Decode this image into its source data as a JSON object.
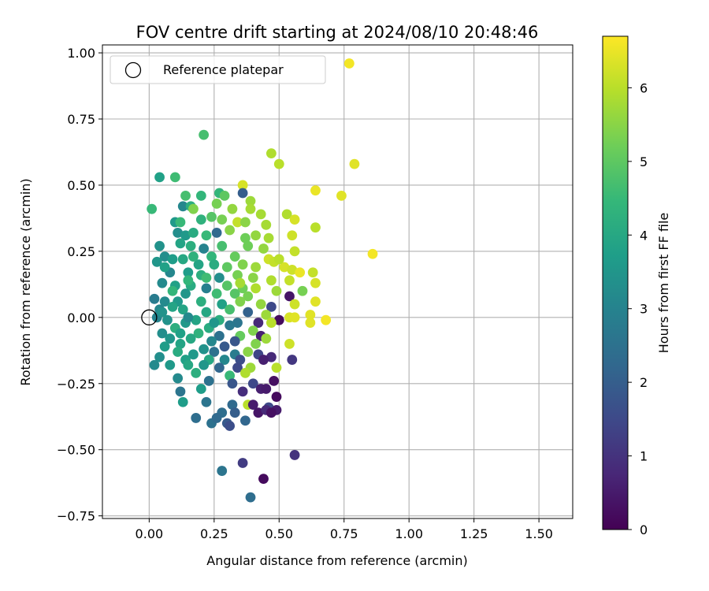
{
  "chart_data": {
    "type": "scatter",
    "title": "FOV centre drift starting at 2024/08/10 20:48:46",
    "xlabel": "Angular distance from reference (arcmin)",
    "ylabel": "Rotation from reference (arcmin)",
    "xlim": [
      -0.18,
      1.63
    ],
    "ylim": [
      -0.76,
      1.03
    ],
    "xticks": [
      0.0,
      0.25,
      0.5,
      0.75,
      1.0,
      1.25,
      1.5
    ],
    "xtick_labels": [
      "0.00",
      "0.25",
      "0.50",
      "0.75",
      "1.00",
      "1.25",
      "1.50"
    ],
    "yticks": [
      1.0,
      0.75,
      0.5,
      0.25,
      0.0,
      -0.25,
      -0.5,
      -0.75
    ],
    "ytick_labels": [
      "1.00",
      "0.75",
      "0.50",
      "0.25",
      "0.00",
      "−0.25",
      "−0.50",
      "−0.75"
    ],
    "grid": true,
    "legend": {
      "label": "Reference platepar",
      "location": "top-left",
      "marker": "open-circle"
    },
    "reference_point": {
      "x": 0.0,
      "y": 0.0
    },
    "colorbar": {
      "label": "Hours from first FF file",
      "colormap": "viridis",
      "range": [
        0,
        6.7
      ],
      "ticks": [
        0,
        1,
        2,
        3,
        4,
        5,
        6
      ],
      "tick_labels": [
        "0",
        "1",
        "2",
        "3",
        "4",
        "5",
        "6"
      ]
    },
    "points": [
      [
        0.77,
        0.96,
        6.6
      ],
      [
        0.21,
        0.69,
        4.7
      ],
      [
        0.47,
        0.62,
        5.9
      ],
      [
        0.5,
        0.58,
        6.0
      ],
      [
        0.79,
        0.58,
        6.4
      ],
      [
        0.04,
        0.53,
        3.8
      ],
      [
        0.1,
        0.53,
        4.6
      ],
      [
        0.36,
        0.5,
        6.3
      ],
      [
        0.64,
        0.48,
        6.5
      ],
      [
        0.74,
        0.46,
        6.4
      ],
      [
        0.27,
        0.47,
        4.4
      ],
      [
        0.29,
        0.46,
        5.0
      ],
      [
        0.36,
        0.47,
        2.0
      ],
      [
        0.14,
        0.46,
        4.7
      ],
      [
        0.2,
        0.46,
        4.4
      ],
      [
        0.39,
        0.44,
        5.7
      ],
      [
        0.26,
        0.43,
        5.3
      ],
      [
        0.01,
        0.41,
        4.5
      ],
      [
        0.13,
        0.42,
        3.1
      ],
      [
        0.16,
        0.42,
        4.2
      ],
      [
        0.17,
        0.41,
        5.4
      ],
      [
        0.39,
        0.41,
        5.8
      ],
      [
        0.32,
        0.41,
        5.6
      ],
      [
        0.43,
        0.39,
        5.8
      ],
      [
        0.53,
        0.39,
        5.9
      ],
      [
        0.56,
        0.37,
        6.3
      ],
      [
        0.1,
        0.36,
        3.6
      ],
      [
        0.2,
        0.37,
        4.3
      ],
      [
        0.28,
        0.37,
        5.3
      ],
      [
        0.34,
        0.36,
        6.1
      ],
      [
        0.37,
        0.36,
        5.5
      ],
      [
        0.45,
        0.35,
        5.8
      ],
      [
        0.64,
        0.34,
        6.0
      ],
      [
        0.26,
        0.32,
        2.3
      ],
      [
        0.11,
        0.32,
        3.3
      ],
      [
        0.14,
        0.31,
        3.6
      ],
      [
        0.17,
        0.32,
        4.1
      ],
      [
        0.22,
        0.31,
        4.5
      ],
      [
        0.37,
        0.3,
        5.2
      ],
      [
        0.41,
        0.31,
        5.6
      ],
      [
        0.46,
        0.3,
        5.8
      ],
      [
        0.55,
        0.31,
        6.2
      ],
      [
        0.04,
        0.27,
        3.4
      ],
      [
        0.12,
        0.28,
        3.9
      ],
      [
        0.16,
        0.27,
        4.2
      ],
      [
        0.21,
        0.26,
        3.0
      ],
      [
        0.28,
        0.27,
        4.7
      ],
      [
        0.38,
        0.27,
        5.2
      ],
      [
        0.56,
        0.25,
        6.1
      ],
      [
        0.86,
        0.24,
        6.6
      ],
      [
        0.06,
        0.23,
        3.3
      ],
      [
        0.09,
        0.22,
        3.7
      ],
      [
        0.13,
        0.22,
        4.0
      ],
      [
        0.24,
        0.23,
        4.4
      ],
      [
        0.33,
        0.23,
        5.1
      ],
      [
        0.46,
        0.22,
        6.2
      ],
      [
        0.48,
        0.21,
        6.1
      ],
      [
        0.03,
        0.21,
        3.5
      ],
      [
        0.19,
        0.2,
        3.9
      ],
      [
        0.25,
        0.2,
        4.1
      ],
      [
        0.3,
        0.19,
        5.0
      ],
      [
        0.36,
        0.2,
        5.4
      ],
      [
        0.41,
        0.19,
        5.7
      ],
      [
        0.52,
        0.19,
        6.3
      ],
      [
        0.55,
        0.18,
        6.2
      ],
      [
        0.58,
        0.17,
        6.5
      ],
      [
        0.63,
        0.17,
        6.1
      ],
      [
        0.08,
        0.17,
        3.1
      ],
      [
        0.15,
        0.17,
        3.7
      ],
      [
        0.2,
        0.16,
        4.2
      ],
      [
        0.27,
        0.15,
        3.3
      ],
      [
        0.34,
        0.16,
        5.3
      ],
      [
        0.4,
        0.15,
        5.5
      ],
      [
        0.47,
        0.14,
        5.9
      ],
      [
        0.54,
        0.14,
        6.1
      ],
      [
        0.64,
        0.13,
        6.3
      ],
      [
        0.05,
        0.13,
        3.2
      ],
      [
        0.1,
        0.12,
        3.8
      ],
      [
        0.16,
        0.12,
        4.1
      ],
      [
        0.22,
        0.11,
        2.9
      ],
      [
        0.3,
        0.12,
        4.9
      ],
      [
        0.36,
        0.11,
        5.2
      ],
      [
        0.41,
        0.11,
        5.9
      ],
      [
        0.49,
        0.1,
        5.7
      ],
      [
        0.59,
        0.1,
        5.3
      ],
      [
        0.09,
        0.1,
        4.4
      ],
      [
        0.14,
        0.09,
        3.5
      ],
      [
        0.26,
        0.09,
        4.6
      ],
      [
        0.33,
        0.09,
        4.9
      ],
      [
        0.38,
        0.08,
        5.3
      ],
      [
        0.54,
        0.08,
        0.4
      ],
      [
        0.02,
        0.07,
        2.8
      ],
      [
        0.06,
        0.06,
        3.2
      ],
      [
        0.11,
        0.06,
        3.6
      ],
      [
        0.2,
        0.06,
        4.2
      ],
      [
        0.28,
        0.05,
        3.8
      ],
      [
        0.35,
        0.06,
        5.4
      ],
      [
        0.43,
        0.05,
        5.6
      ],
      [
        0.47,
        0.04,
        1.5
      ],
      [
        0.56,
        0.05,
        6.2
      ],
      [
        0.64,
        0.06,
        6.4
      ],
      [
        0.04,
        0.03,
        3.1
      ],
      [
        0.13,
        0.03,
        3.9
      ],
      [
        0.22,
        0.02,
        4.0
      ],
      [
        0.31,
        0.03,
        4.7
      ],
      [
        0.38,
        0.02,
        2.1
      ],
      [
        0.45,
        0.01,
        5.7
      ],
      [
        0.54,
        0.0,
        6.3
      ],
      [
        0.62,
        0.01,
        6.4
      ],
      [
        0.03,
        0.0,
        3.0
      ],
      [
        0.07,
        -0.01,
        3.4
      ],
      [
        0.18,
        -0.01,
        3.9
      ],
      [
        0.27,
        -0.01,
        4.2
      ],
      [
        0.34,
        -0.02,
        2.6
      ],
      [
        0.42,
        -0.02,
        0.8
      ],
      [
        0.5,
        -0.01,
        0.2
      ],
      [
        0.56,
        0.0,
        6.4
      ],
      [
        0.68,
        -0.01,
        6.6
      ],
      [
        0.1,
        -0.04,
        4.2
      ],
      [
        0.14,
        -0.02,
        3.6
      ],
      [
        0.23,
        -0.04,
        4.1
      ],
      [
        0.31,
        -0.03,
        2.7
      ],
      [
        0.4,
        -0.05,
        5.4
      ],
      [
        0.47,
        -0.02,
        6.0
      ],
      [
        0.62,
        -0.02,
        6.4
      ],
      [
        0.05,
        -0.06,
        3.3
      ],
      [
        0.12,
        -0.06,
        3.8
      ],
      [
        0.19,
        -0.06,
        4.3
      ],
      [
        0.27,
        -0.07,
        2.5
      ],
      [
        0.35,
        -0.07,
        5.1
      ],
      [
        0.43,
        -0.07,
        0.6
      ],
      [
        0.08,
        -0.08,
        3.5
      ],
      [
        0.16,
        -0.08,
        4.0
      ],
      [
        0.24,
        -0.09,
        3.1
      ],
      [
        0.33,
        -0.09,
        1.8
      ],
      [
        0.41,
        -0.1,
        5.4
      ],
      [
        0.45,
        -0.08,
        5.7
      ],
      [
        0.54,
        -0.1,
        6.2
      ],
      [
        0.06,
        -0.11,
        3.7
      ],
      [
        0.12,
        -0.1,
        3.9
      ],
      [
        0.21,
        -0.12,
        3.4
      ],
      [
        0.29,
        -0.11,
        1.9
      ],
      [
        0.38,
        -0.13,
        5.5
      ],
      [
        0.11,
        -0.13,
        4.1
      ],
      [
        0.17,
        -0.14,
        3.6
      ],
      [
        0.25,
        -0.13,
        2.5
      ],
      [
        0.33,
        -0.14,
        2.8
      ],
      [
        0.42,
        -0.14,
        1.4
      ],
      [
        0.47,
        -0.15,
        0.8
      ],
      [
        0.04,
        -0.15,
        3.3
      ],
      [
        0.14,
        -0.16,
        3.8
      ],
      [
        0.23,
        -0.16,
        4.0
      ],
      [
        0.29,
        -0.16,
        3.1
      ],
      [
        0.35,
        -0.16,
        1.6
      ],
      [
        0.44,
        -0.16,
        0.6
      ],
      [
        0.55,
        -0.16,
        1.1
      ],
      [
        0.02,
        -0.18,
        3.2
      ],
      [
        0.08,
        -0.18,
        3.6
      ],
      [
        0.15,
        -0.18,
        4.0
      ],
      [
        0.21,
        -0.18,
        3.5
      ],
      [
        0.27,
        -0.19,
        2.2
      ],
      [
        0.34,
        -0.19,
        1.5
      ],
      [
        0.39,
        -0.19,
        5.7
      ],
      [
        0.49,
        -0.19,
        6.0
      ],
      [
        0.18,
        -0.21,
        4.2
      ],
      [
        0.31,
        -0.22,
        4.5
      ],
      [
        0.37,
        -0.21,
        5.9
      ],
      [
        0.11,
        -0.23,
        3.2
      ],
      [
        0.23,
        -0.24,
        2.5
      ],
      [
        0.32,
        -0.25,
        1.8
      ],
      [
        0.4,
        -0.25,
        1.5
      ],
      [
        0.48,
        -0.24,
        0.3
      ],
      [
        0.43,
        -0.27,
        0.6
      ],
      [
        0.12,
        -0.28,
        2.6
      ],
      [
        0.2,
        -0.27,
        3.7
      ],
      [
        0.36,
        -0.28,
        0.9
      ],
      [
        0.45,
        -0.27,
        0.5
      ],
      [
        0.49,
        -0.3,
        0.2
      ],
      [
        0.13,
        -0.32,
        3.7
      ],
      [
        0.22,
        -0.32,
        2.6
      ],
      [
        0.32,
        -0.33,
        2.3
      ],
      [
        0.38,
        -0.33,
        6.0
      ],
      [
        0.4,
        -0.33,
        0.5
      ],
      [
        0.46,
        -0.34,
        1.5
      ],
      [
        0.49,
        -0.35,
        0.5
      ],
      [
        0.28,
        -0.36,
        2.4
      ],
      [
        0.33,
        -0.36,
        2.0
      ],
      [
        0.42,
        -0.36,
        0.4
      ],
      [
        0.45,
        -0.35,
        0.8
      ],
      [
        0.47,
        -0.36,
        0.3
      ],
      [
        0.18,
        -0.38,
        2.4
      ],
      [
        0.24,
        -0.4,
        2.5
      ],
      [
        0.26,
        -0.38,
        2.3
      ],
      [
        0.3,
        -0.4,
        1.9
      ],
      [
        0.31,
        -0.41,
        1.6
      ],
      [
        0.37,
        -0.39,
        2.2
      ],
      [
        0.56,
        -0.52,
        1.0
      ],
      [
        0.36,
        -0.55,
        1.2
      ],
      [
        0.28,
        -0.58,
        2.6
      ],
      [
        0.44,
        -0.61,
        0.2
      ],
      [
        0.39,
        -0.68,
        2.4
      ],
      [
        0.05,
        0.02,
        3.4
      ],
      [
        0.09,
        0.04,
        3.9
      ],
      [
        0.15,
        0.0,
        3.2
      ],
      [
        0.25,
        -0.02,
        3.5
      ],
      [
        0.17,
        0.23,
        4.3
      ],
      [
        0.22,
        0.15,
        4.6
      ],
      [
        0.06,
        0.19,
        3.8
      ],
      [
        0.15,
        0.14,
        4.4
      ],
      [
        0.31,
        0.33,
        5.5
      ],
      [
        0.24,
        0.38,
        4.9
      ],
      [
        0.12,
        0.36,
        4.5
      ],
      [
        0.35,
        0.13,
        5.8
      ],
      [
        0.44,
        0.26,
        5.6
      ],
      [
        0.5,
        0.22,
        6.0
      ]
    ]
  }
}
